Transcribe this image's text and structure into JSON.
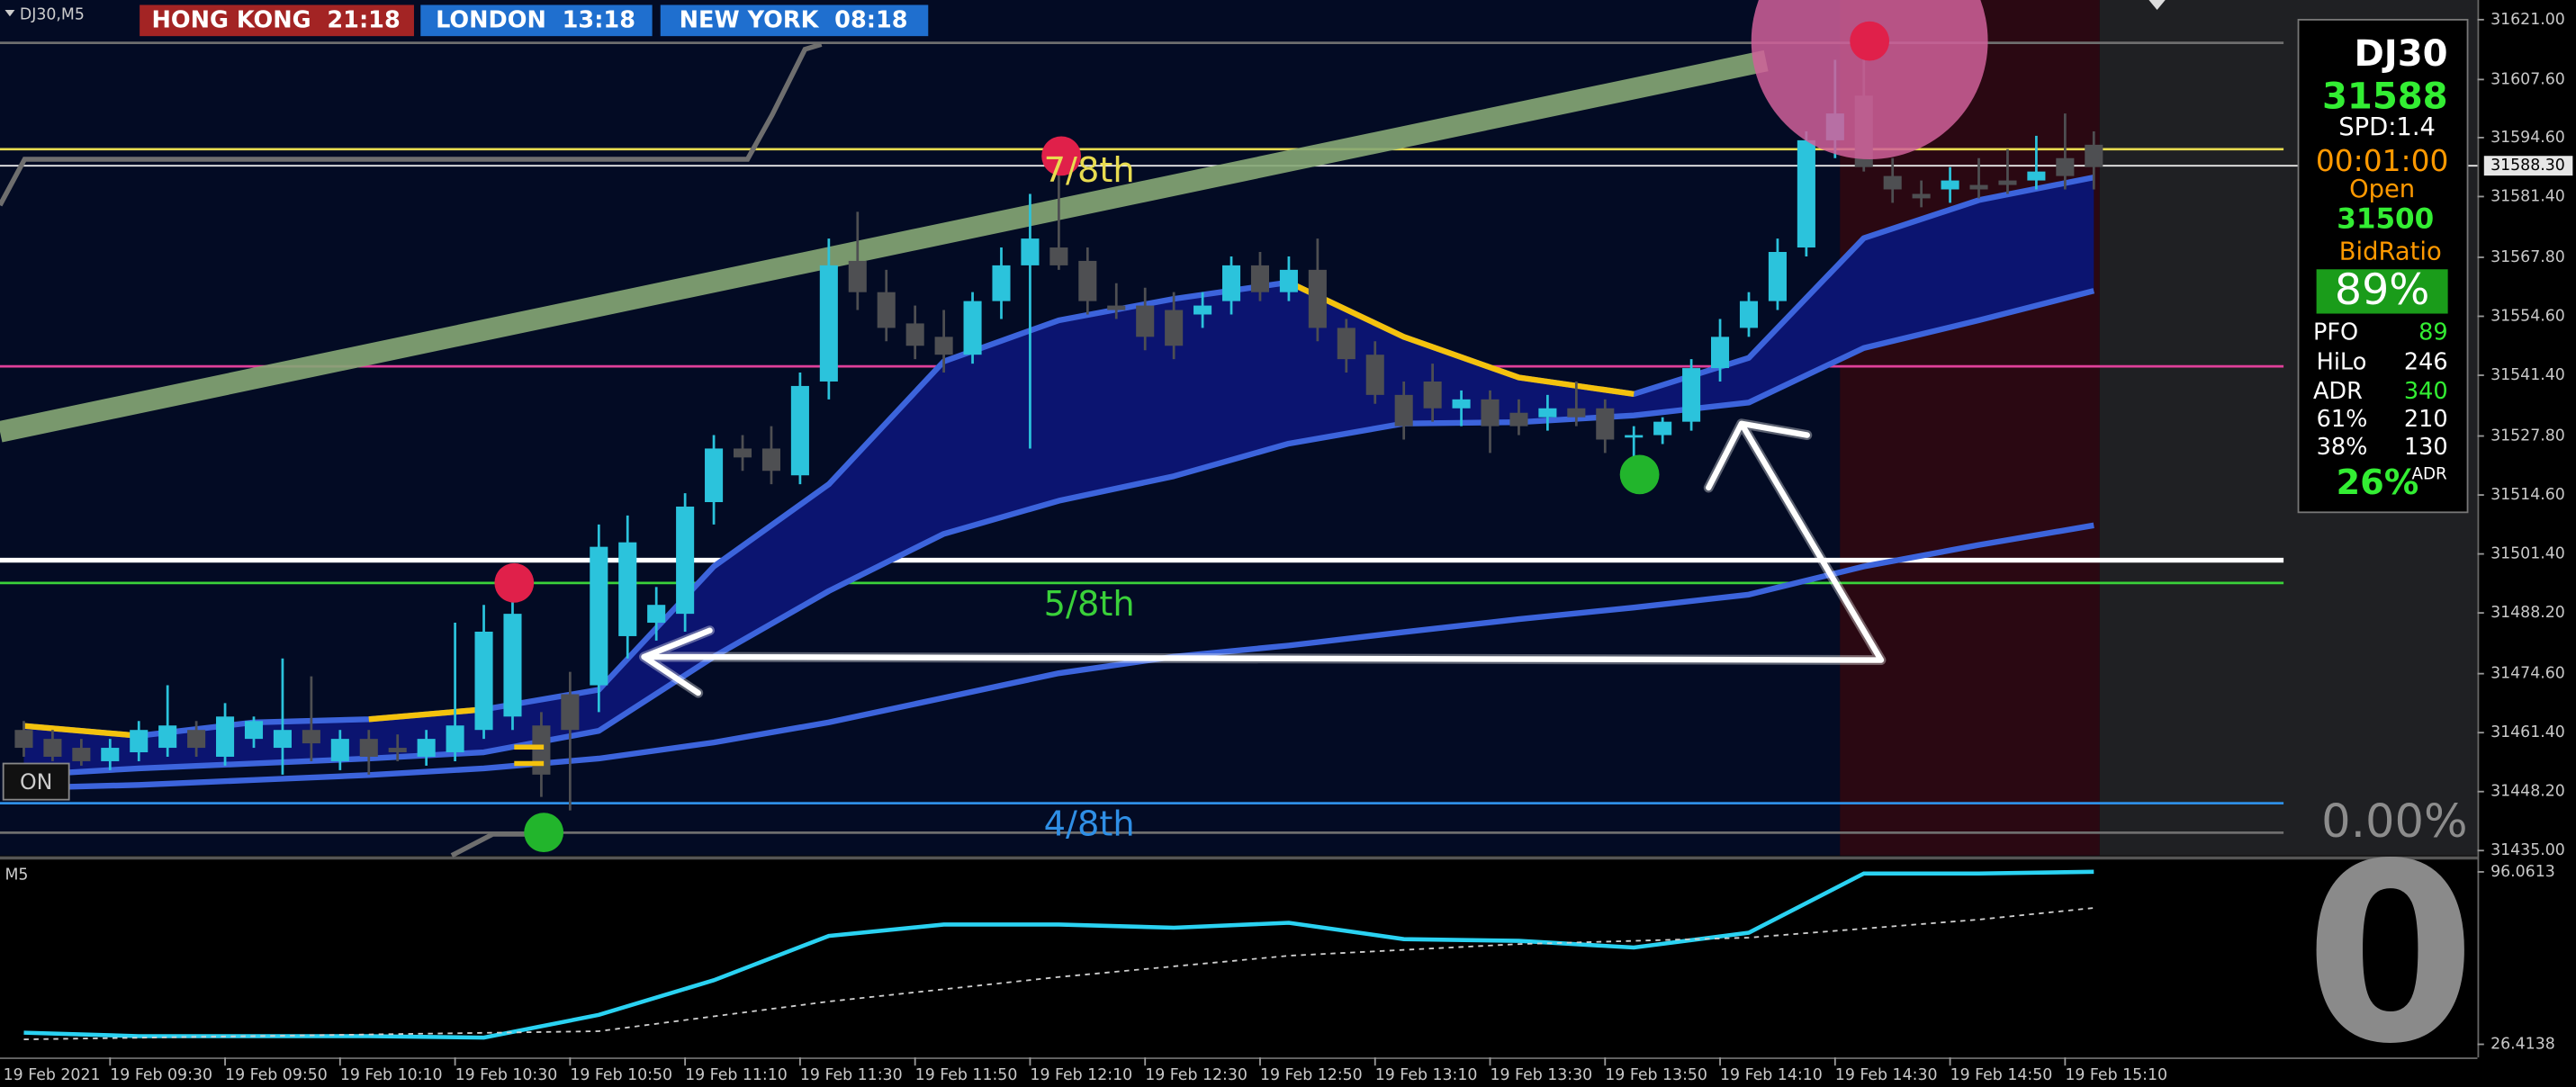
{
  "window_title": "DJ30,M5",
  "session_clocks": [
    "HONG KONG  21:18",
    "LONDON  13:18",
    "NEW YORK  08:18"
  ],
  "overlay": {
    "change": "0.00%",
    "on_button": "ON"
  },
  "info_panel": {
    "symbol": "DJ30",
    "price": "31588",
    "spread": "SPD:1.4",
    "timer": "00:01:00",
    "open_label": "Open",
    "open_price": "31500",
    "bid_ratio_label": "BidRatio",
    "bid_ratio": "89%",
    "stats": [
      [
        "PFO",
        "89"
      ],
      [
        "HiLo",
        "246"
      ],
      [
        "ADR",
        "340"
      ],
      [
        "61%",
        "210"
      ],
      [
        "38%",
        "130"
      ]
    ],
    "adr_percent": "26%",
    "adr_label": "ADR"
  },
  "chart_data": [
    {
      "type": "candlestick",
      "title": "DJ30,M5",
      "x_start_label": "19 Feb 2021",
      "categories": [
        null,
        null,
        null,
        "19 Feb 09:30",
        null,
        null,
        null,
        "19 Feb 09:50",
        null,
        null,
        null,
        "19 Feb 10:10",
        null,
        null,
        null,
        "19 Feb 10:30",
        null,
        null,
        null,
        "19 Feb 10:50",
        null,
        null,
        null,
        "19 Feb 11:10",
        null,
        null,
        null,
        "19 Feb 11:30",
        null,
        null,
        null,
        "19 Feb 11:50",
        null,
        null,
        null,
        "19 Feb 12:10",
        null,
        null,
        null,
        "19 Feb 12:30",
        null,
        null,
        null,
        "19 Feb 12:50",
        null,
        null,
        null,
        "19 Feb 13:10",
        null,
        null,
        null,
        "19 Feb 13:30",
        null,
        null,
        null,
        "19 Feb 13:50",
        null,
        null,
        null,
        "19 Feb 14:10",
        null,
        null,
        null,
        "19 Feb 14:30",
        null,
        null,
        null,
        "19 Feb 14:50",
        null,
        null,
        null,
        "19 Feb 15:10",
        null
      ],
      "open": [
        31462,
        31460,
        31458,
        31455,
        31457,
        31458,
        31462,
        31456,
        31460,
        31458,
        31462,
        31455,
        31460,
        31458,
        31456,
        31457,
        31462,
        31465,
        31463,
        31470,
        31472,
        31483,
        31486,
        31488,
        31513,
        31525,
        31525,
        31519,
        31540,
        31567,
        31560,
        31553,
        31550,
        31546,
        31558,
        31566,
        31570,
        31567,
        31557,
        31557,
        31556,
        31555,
        31558,
        31566,
        31560,
        31565,
        31552,
        31546,
        31537,
        31540,
        31534,
        31536,
        31533,
        31532,
        31534,
        31534,
        31528,
        31528,
        31531,
        31543,
        31552,
        31558,
        31570,
        31594,
        31604,
        31586,
        31582,
        31583,
        31584,
        31585,
        31585,
        31590,
        31593
      ],
      "high": [
        31464,
        31462,
        31460,
        31460,
        31464,
        31472,
        31464,
        31468,
        31465,
        31478,
        31474,
        31462,
        31462,
        31461,
        31462,
        31486,
        31490,
        31492,
        31466,
        31475,
        31508,
        31510,
        31494,
        31515,
        31528,
        31528,
        31530,
        31542,
        31572,
        31578,
        31565,
        31557,
        31556,
        31560,
        31570,
        31582,
        31590,
        31570,
        31562,
        31561,
        31560,
        31560,
        31568,
        31569,
        31568,
        31572,
        31554,
        31549,
        31540,
        31544,
        31538,
        31538,
        31536,
        31537,
        31540,
        31536,
        31530,
        31532,
        31545,
        31554,
        31560,
        31572,
        31596,
        31612,
        31615,
        31590,
        31585,
        31588,
        31590,
        31592,
        31595,
        31600,
        31596
      ],
      "low": [
        31456,
        31455,
        31454,
        31453,
        31455,
        31456,
        31456,
        31454,
        31458,
        31452,
        31455,
        31453,
        31452,
        31455,
        31454,
        31455,
        31460,
        31462,
        31447,
        31444,
        31466,
        31478,
        31482,
        31484,
        31508,
        31520,
        31517,
        31517,
        31536,
        31556,
        31549,
        31545,
        31542,
        31544,
        31554,
        31525,
        31565,
        31555,
        31554,
        31547,
        31545,
        31552,
        31555,
        31558,
        31558,
        31549,
        31542,
        31535,
        31527,
        31531,
        31530,
        31524,
        31528,
        31529,
        31530,
        31524,
        31520,
        31526,
        31529,
        31540,
        31550,
        31556,
        31568,
        31590,
        31587,
        31580,
        31579,
        31580,
        31581,
        31582,
        31583,
        31583,
        31583
      ],
      "close": [
        31458,
        31456,
        31455,
        31458,
        31462,
        31463,
        31458,
        31465,
        31464,
        31462,
        31459,
        31460,
        31456,
        31457,
        31460,
        31463,
        31484,
        31488,
        31452,
        31462,
        31503,
        31504,
        31490,
        31512,
        31525,
        31523,
        31520,
        31539,
        31566,
        31560,
        31552,
        31548,
        31546,
        31558,
        31566,
        31572,
        31566,
        31558,
        31556,
        31550,
        31548,
        31557,
        31566,
        31560,
        31565,
        31552,
        31545,
        31537,
        31530,
        31534,
        31536,
        31530,
        31530,
        31534,
        31532,
        31527,
        31528,
        31531,
        31543,
        31550,
        31558,
        31569,
        31594,
        31600,
        31588,
        31583,
        31581,
        31585,
        31583,
        31584,
        31587,
        31586,
        31588
      ],
      "up_color": "#2bc3dc",
      "down_color": "#4e4f52",
      "ylim": [
        31433.9,
        31625.4
      ],
      "yticks": [
        {
          "value": 31621,
          "label": "31621.00"
        },
        {
          "value": 31607.6,
          "label": "31607.60"
        },
        {
          "value": 31594.6,
          "label": "31594.60"
        },
        {
          "value": 31581.4,
          "label": "31581.40"
        },
        {
          "value": 31567.8,
          "label": "31567.80"
        },
        {
          "value": 31554.6,
          "label": "31554.60"
        },
        {
          "value": 31541.4,
          "label": "31541.40"
        },
        {
          "value": 31527.8,
          "label": "31527.80"
        },
        {
          "value": 31514.6,
          "label": "31514.60"
        },
        {
          "value": 31501.4,
          "label": "31501.40"
        },
        {
          "value": 31488.2,
          "label": "31488.20"
        },
        {
          "value": 31474.6,
          "label": "31474.60"
        },
        {
          "value": 31461.4,
          "label": "31461.40"
        },
        {
          "value": 31448.2,
          "label": "31448.20"
        },
        {
          "value": 31435,
          "label": "31435.00"
        }
      ],
      "current_price": {
        "value": 31588.3,
        "label": "31588.30"
      },
      "levels": [
        {
          "value": 31615.8,
          "color": "#6e6e6e"
        },
        {
          "value": 31592,
          "color": "#e8dc50",
          "label": "7/8th"
        },
        {
          "value": 31543.4,
          "color": "#e0409a"
        },
        {
          "value": 31500,
          "color": "#ffffff",
          "line_width": 3
        },
        {
          "value": 31494.9,
          "color": "#3ad13a",
          "label": "5/8th"
        },
        {
          "value": 31445.6,
          "color": "#2f8fe6",
          "label": "4/8th"
        },
        {
          "value": 31439,
          "color": "#6e6e6e"
        }
      ],
      "indicators": [
        {
          "color": "#3c64dc",
          "x": [
            0,
            4,
            8,
            12,
            16,
            20,
            24,
            28,
            32,
            36,
            40,
            44,
            48,
            52,
            56,
            60,
            64,
            68,
            72
          ],
          "values": [
            31462.9,
            31460.7,
            31463.7,
            31464.4,
            31466.6,
            31471.0,
            31498.6,
            31517.0,
            31544.5,
            31553.7,
            31558.5,
            31562.2,
            31550.0,
            31540.9,
            31537.2,
            31545.3,
            31572.1,
            31580.6,
            31585.7
          ]
        },
        {
          "color": "#3c64dc",
          "x": [
            0,
            4,
            8,
            12,
            16,
            20,
            24,
            28,
            32,
            36,
            40,
            44,
            48,
            52,
            56,
            60,
            64,
            68,
            72
          ],
          "values": [
            31451.9,
            31453.4,
            31454.5,
            31455.6,
            31457.0,
            31461.8,
            31478.4,
            31493.1,
            31505.9,
            31513.3,
            31518.8,
            31526.1,
            31530.6,
            31530.9,
            31532.4,
            31535.3,
            31547.5,
            31553.7,
            31560.3
          ]
        },
        {
          "color": "#3c64dc",
          "x": [
            0,
            4,
            8,
            12,
            16,
            20,
            24,
            28,
            32,
            36,
            40,
            44,
            48,
            52,
            56,
            60,
            64,
            68,
            72
          ],
          "values": [
            31449.0,
            31449.7,
            31450.8,
            31451.9,
            31453.4,
            31455.6,
            31459.2,
            31463.7,
            31469.2,
            31474.7,
            31478.4,
            31480.9,
            31483.9,
            31486.8,
            31489.4,
            31492.3,
            31498.6,
            31503.4,
            31507.8
          ]
        },
        {
          "color": "#f4c20d",
          "x": [
            0,
            4,
            8,
            12,
            16,
            20,
            24,
            28,
            32,
            36,
            40,
            44,
            48,
            52,
            56,
            60,
            64,
            68,
            72
          ],
          "values": [
            31462.9,
            31460.7,
            null,
            31464.4,
            31466.6,
            null,
            null,
            null,
            null,
            null,
            null,
            31562.2,
            31550.0,
            31540.9,
            31537.2,
            null,
            null,
            null,
            null
          ]
        }
      ]
    },
    {
      "type": "line",
      "title": "M5",
      "ylim": [
        21.1,
        100.7
      ],
      "yticks": [
        96.0613,
        26.4138
      ],
      "signal_value": 0,
      "series": [
        {
          "color": "#2ad2f2",
          "x": [
            0,
            4,
            8,
            12,
            16,
            20,
            24,
            28,
            32,
            36,
            40,
            44,
            48,
            52,
            56,
            60,
            64,
            68,
            72
          ],
          "values": [
            31.1,
            29.7,
            29.7,
            29.7,
            29.1,
            38.3,
            52.3,
            70.2,
            74.8,
            74.8,
            73.5,
            75.5,
            68.9,
            68.2,
            65.5,
            71.5,
            95.4,
            95.4,
            96.1
          ]
        },
        {
          "color": "#cfcfcf",
          "dashed": true,
          "x": [
            0,
            20,
            28,
            36,
            44,
            52,
            60,
            68,
            72
          ],
          "values": [
            28.4,
            31.7,
            43.7,
            53.6,
            62.2,
            66.9,
            69.5,
            76.8,
            81.5
          ]
        }
      ]
    }
  ]
}
